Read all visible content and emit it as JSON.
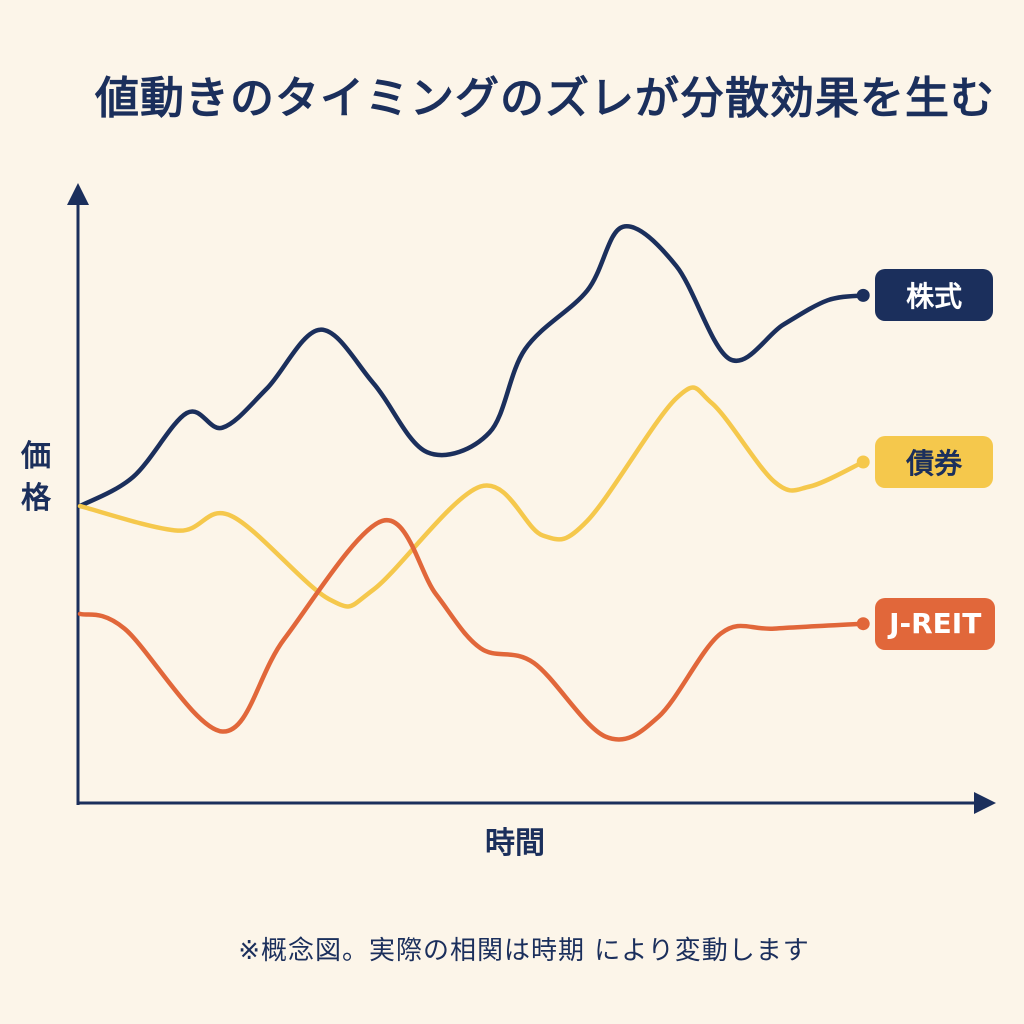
{
  "title": "値動きのタイミングのズレが分散効果を生む",
  "footnote": "※概念図。実際の相関は時期 により変動します",
  "chart_data": {
    "type": "line",
    "xlabel": "時間",
    "ylabel": "価格",
    "axis_ticks": "none",
    "grid": false,
    "legend_placement": "right, at end of each line",
    "series": [
      {
        "name": "株式",
        "color": "#1B2F5C",
        "label_text_color": "#FFFFFF",
        "points": [
          [
            0,
            0.61
          ],
          [
            6,
            0.67
          ],
          [
            12,
            0.8
          ],
          [
            16,
            0.77
          ],
          [
            21,
            0.85
          ],
          [
            27,
            0.97
          ],
          [
            33,
            0.86
          ],
          [
            39,
            0.72
          ],
          [
            46,
            0.76
          ],
          [
            50,
            0.93
          ],
          [
            57,
            1.05
          ],
          [
            61,
            1.18
          ],
          [
            67,
            1.1
          ],
          [
            73,
            0.91
          ],
          [
            79,
            0.98
          ],
          [
            84,
            1.03
          ],
          [
            88,
            1.04
          ]
        ]
      },
      {
        "name": "債券",
        "color": "#F5C84C",
        "label_text_color": "#1B2F5C",
        "points": [
          [
            0,
            0.61
          ],
          [
            11,
            0.56
          ],
          [
            17,
            0.59
          ],
          [
            28,
            0.42
          ],
          [
            33,
            0.44
          ],
          [
            45,
            0.65
          ],
          [
            52,
            0.55
          ],
          [
            57,
            0.58
          ],
          [
            67,
            0.83
          ],
          [
            71,
            0.82
          ],
          [
            78,
            0.66
          ],
          [
            82,
            0.65
          ],
          [
            88,
            0.7
          ]
        ]
      },
      {
        "name": "J-REIT",
        "color": "#E1673A",
        "label_text_color": "#FFFFFF",
        "points": [
          [
            0,
            0.39
          ],
          [
            5,
            0.36
          ],
          [
            16,
            0.15
          ],
          [
            23,
            0.34
          ],
          [
            34,
            0.58
          ],
          [
            40,
            0.43
          ],
          [
            45,
            0.32
          ],
          [
            51,
            0.29
          ],
          [
            59,
            0.14
          ],
          [
            65,
            0.18
          ],
          [
            72,
            0.35
          ],
          [
            78,
            0.36
          ],
          [
            88,
            0.37
          ]
        ]
      }
    ]
  }
}
